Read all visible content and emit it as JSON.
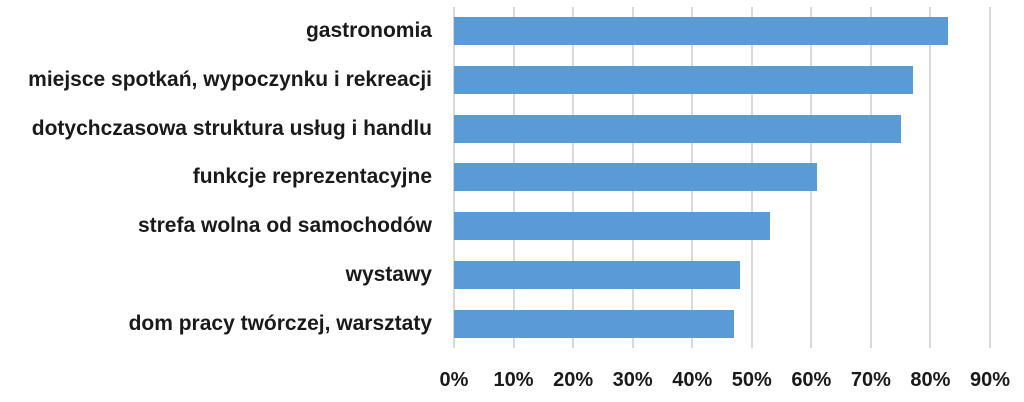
{
  "chart_data": {
    "type": "bar",
    "orientation": "horizontal",
    "title": "",
    "xlabel": "",
    "ylabel": "",
    "categories": [
      "gastronomia",
      "miejsce spotkań, wypoczynku i rekreacji",
      "dotychczasowa struktura usług i handlu",
      "funkcje reprezentacyjne",
      "strefa wolna od samochodów",
      "wystawy",
      "dom pracy twórczej, warsztaty"
    ],
    "values": [
      83,
      77,
      75,
      61,
      53,
      48,
      47
    ],
    "unit": "%",
    "xlim": [
      0,
      90
    ],
    "ticks": [
      "0%",
      "10%",
      "20%",
      "30%",
      "40%",
      "50%",
      "60%",
      "70%",
      "80%",
      "90%"
    ],
    "grid": "vertical",
    "legend": null,
    "bar_color": "#5b9bd5"
  }
}
